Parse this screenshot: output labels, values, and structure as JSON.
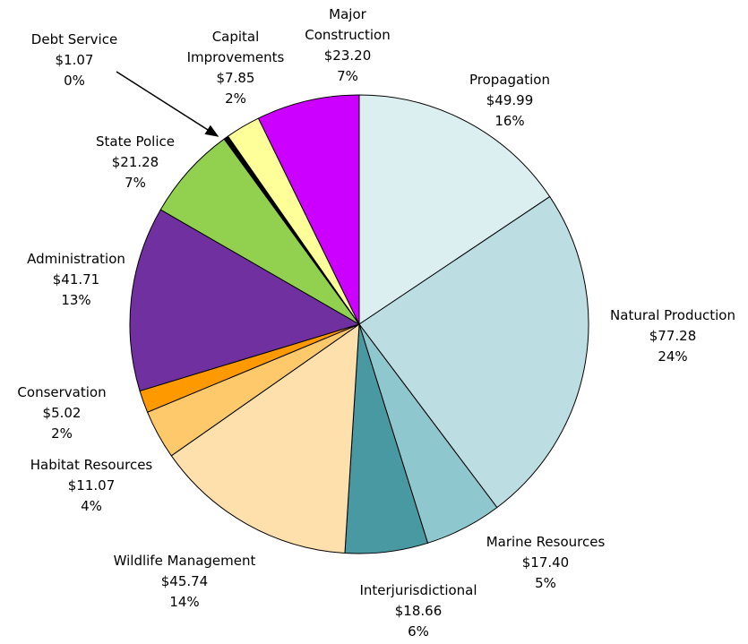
{
  "chart_data": {
    "type": "pie",
    "categories": [
      "Propagation",
      "Natural Production",
      "Marine Resources",
      "Interjurisdictional",
      "Wildlife Management",
      "Habitat Resources",
      "Conservation",
      "Administration",
      "State Police",
      "Debt Service",
      "Capital Improvements",
      "Major Construction"
    ],
    "values": [
      49.99,
      77.28,
      17.4,
      18.66,
      45.74,
      11.07,
      5.02,
      41.71,
      21.28,
      1.07,
      7.85,
      23.2
    ],
    "value_labels": [
      "$49.99",
      "$77.28",
      "$17.40",
      "$18.66",
      "$45.74",
      "$11.07",
      "$5.02",
      "$41.71",
      "$21.28",
      "$1.07",
      "$7.85",
      "$23.20"
    ],
    "percent_labels": [
      "16%",
      "24%",
      "5%",
      "6%",
      "14%",
      "4%",
      "2%",
      "13%",
      "7%",
      "0%",
      "2%",
      "7%"
    ],
    "colors": [
      "#dbeef0",
      "#bcdde2",
      "#8fc7cf",
      "#4899a1",
      "#fde0ab",
      "#fdc96a",
      "#ff9900",
      "#7030a0",
      "#92d050",
      "#000000",
      "#ffff99",
      "#cc00ff"
    ]
  }
}
